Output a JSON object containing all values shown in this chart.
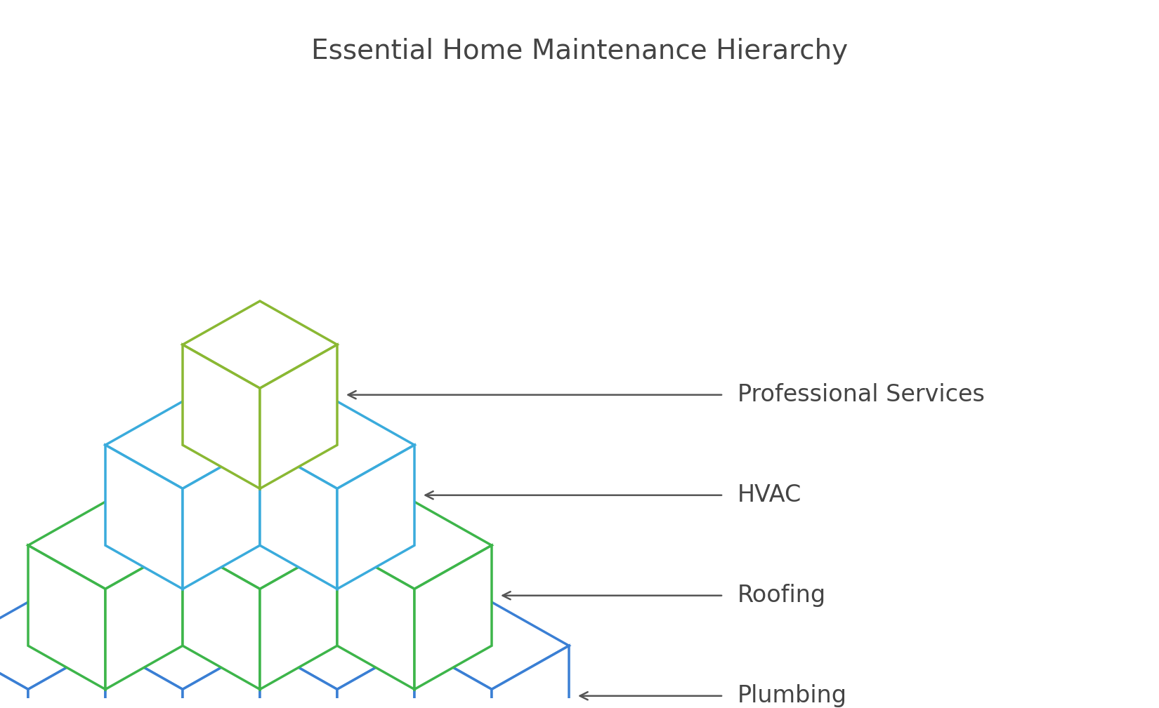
{
  "title": "Essential Home Maintenance Hierarchy",
  "title_fontsize": 28,
  "title_color": "#444444",
  "background_color": "#ffffff",
  "layer_colors": [
    "#8ab833",
    "#3aabdc",
    "#3db54a",
    "#3a7fd4"
  ],
  "layer_labels": [
    "Professional Services",
    "HVAC",
    "Roofing",
    "Plumbing"
  ],
  "label_fontsize": 24,
  "label_color": "#444444",
  "arrow_color": "#555555",
  "lw": 2.5
}
